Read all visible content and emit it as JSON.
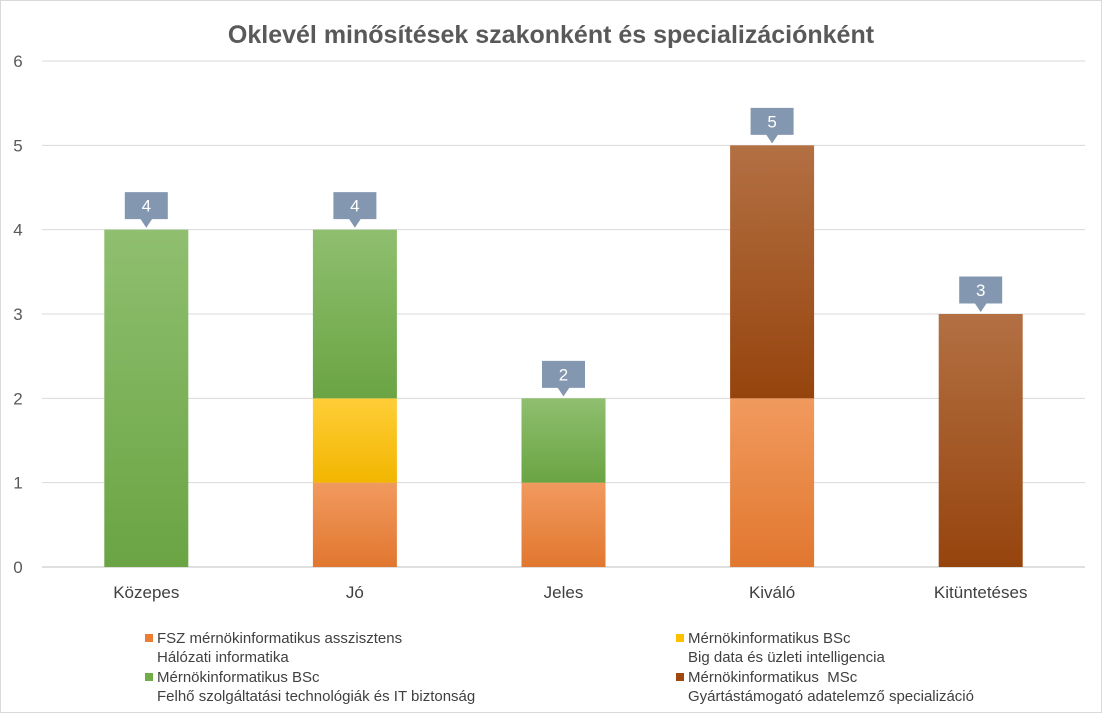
{
  "chart_data": {
    "type": "bar",
    "stacked": true,
    "title": "Oklevél minősítések szakonként és specializációnként",
    "categories": [
      "Közepes",
      "Jó",
      "Jeles",
      "Kiváló",
      "Kitüntetéses"
    ],
    "ylim": [
      0,
      6
    ],
    "yticks": [
      "0",
      "1",
      "2",
      "3",
      "4",
      "5",
      "6"
    ],
    "grid": true,
    "legend_position": "bottom",
    "totals": [
      "4",
      "4",
      "2",
      "5",
      "3"
    ],
    "series": [
      {
        "name": "FSZ mérnökinformatikus asszisztens",
        "name2": "Hálózati informatika",
        "color": "#ED7D31",
        "values": [
          0,
          1,
          1,
          2,
          0
        ]
      },
      {
        "name": "Mérnökinformatikus BSc",
        "name2": "Big data és üzleti intelligencia",
        "color": "#FFC000",
        "values": [
          0,
          1,
          0,
          0,
          0
        ]
      },
      {
        "name": "Mérnökinformatikus BSc",
        "name2": "Felhő szolgáltatási technológiák és IT biztonság",
        "color": "#70AD47",
        "values": [
          4,
          2,
          1,
          0,
          0
        ]
      },
      {
        "name": "Mérnökinformatikus  MSc",
        "name2": "Gyártástámogató adatelemző specializáció",
        "color": "#9E480E",
        "values": [
          0,
          0,
          0,
          3,
          3
        ]
      }
    ],
    "label_box_color": "#8497B0"
  }
}
